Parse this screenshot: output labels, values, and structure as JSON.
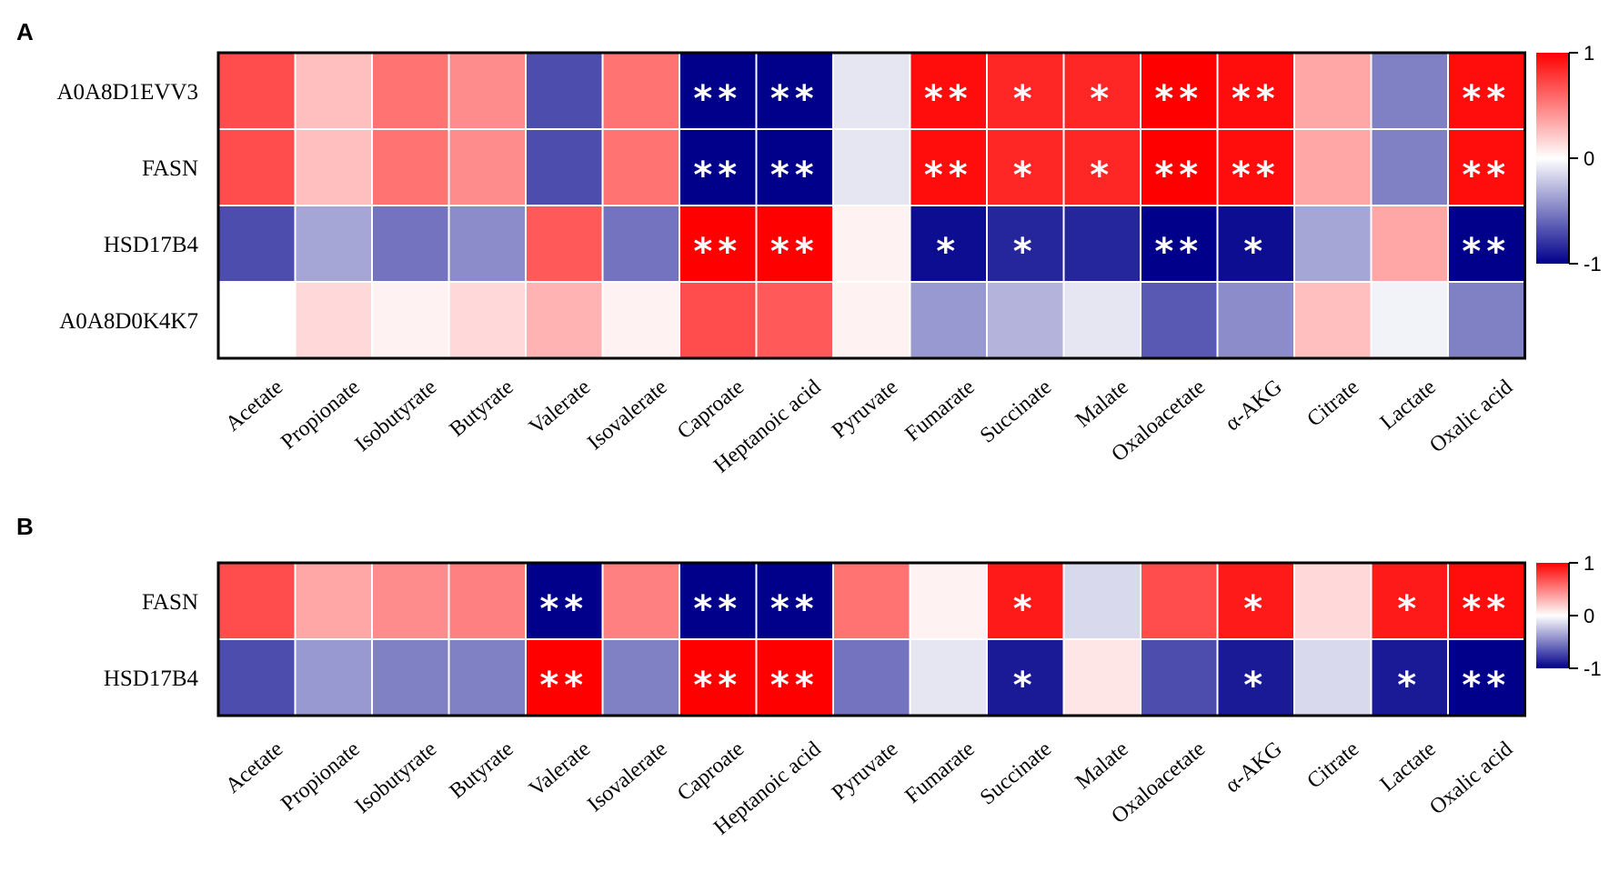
{
  "chart_data": [
    {
      "type": "heatmap",
      "panel_label": "A",
      "rows": [
        "A0A8D1EVV3",
        "FASN",
        "HSD17B4",
        "A0A8D0K4K7"
      ],
      "columns": [
        "Acetate",
        "Propionate",
        "Isobutyrate",
        "Butyrate",
        "Valerate",
        "Isovalerate",
        "Caproate",
        "Heptanoic acid",
        "Pyruvate",
        "Fumarate",
        "Succinate",
        "Malate",
        "Oxaloacetate",
        "α-AKG",
        "Citrate",
        "Lactate",
        "Oxalic acid"
      ],
      "values": [
        [
          0.7,
          0.25,
          0.55,
          0.45,
          -0.7,
          0.55,
          -1.0,
          -1.0,
          -0.1,
          0.95,
          0.85,
          0.85,
          1.0,
          0.95,
          0.35,
          -0.5,
          0.95
        ],
        [
          0.7,
          0.25,
          0.55,
          0.45,
          -0.7,
          0.55,
          -1.0,
          -1.0,
          -0.1,
          0.95,
          0.85,
          0.85,
          1.0,
          0.95,
          0.35,
          -0.5,
          0.95
        ],
        [
          -0.7,
          -0.35,
          -0.55,
          -0.45,
          0.65,
          -0.55,
          1.0,
          1.0,
          0.05,
          -0.95,
          -0.85,
          -0.85,
          -1.0,
          -0.95,
          -0.35,
          0.35,
          -1.0
        ],
        [
          0.0,
          0.15,
          0.05,
          0.15,
          0.3,
          0.05,
          0.7,
          0.65,
          0.05,
          -0.4,
          -0.3,
          -0.1,
          -0.65,
          -0.45,
          0.25,
          -0.05,
          -0.5
        ]
      ],
      "significance": [
        [
          "",
          "",
          "",
          "",
          "",
          "",
          "**",
          "**",
          "",
          "**",
          "*",
          "*",
          "**",
          "**",
          "",
          "",
          "**"
        ],
        [
          "",
          "",
          "",
          "",
          "",
          "",
          "**",
          "**",
          "",
          "**",
          "*",
          "*",
          "**",
          "**",
          "",
          "",
          "**"
        ],
        [
          "",
          "",
          "",
          "",
          "",
          "",
          "**",
          "**",
          "",
          "*",
          "*",
          "",
          "**",
          "*",
          "",
          "",
          "**"
        ],
        [
          "",
          "",
          "",
          "",
          "",
          "",
          "",
          "",
          "",
          "",
          "",
          "",
          "",
          "",
          "",
          "",
          ""
        ]
      ],
      "colorbar": {
        "min": -1,
        "max": 1,
        "ticks": [
          "1",
          "0",
          "-1"
        ],
        "colors": {
          "high": "#ff0000",
          "mid": "#ffffff",
          "low": "#00008b"
        }
      }
    },
    {
      "type": "heatmap",
      "panel_label": "B",
      "rows": [
        "FASN",
        "HSD17B4"
      ],
      "columns": [
        "Acetate",
        "Propionate",
        "Isobutyrate",
        "Butyrate",
        "Valerate",
        "Isovalerate",
        "Caproate",
        "Heptanoic acid",
        "Pyruvate",
        "Fumarate",
        "Succinate",
        "Malate",
        "Oxaloacetate",
        "α-AKG",
        "Citrate",
        "Lactate",
        "Oxalic acid"
      ],
      "values": [
        [
          0.7,
          0.35,
          0.45,
          0.5,
          -1.0,
          0.5,
          -1.0,
          -1.0,
          0.55,
          0.05,
          0.9,
          -0.15,
          0.7,
          0.9,
          0.15,
          0.9,
          0.95
        ],
        [
          -0.7,
          -0.4,
          -0.5,
          -0.5,
          1.0,
          -0.5,
          1.0,
          1.0,
          -0.55,
          -0.1,
          -0.9,
          0.1,
          -0.7,
          -0.9,
          -0.15,
          -0.9,
          -1.0
        ]
      ],
      "significance": [
        [
          "",
          "",
          "",
          "",
          "**",
          "",
          "**",
          "**",
          "",
          "",
          "*",
          "",
          "",
          "*",
          "",
          "*",
          "**"
        ],
        [
          "",
          "",
          "",
          "",
          "**",
          "",
          "**",
          "**",
          "",
          "",
          "*",
          "",
          "",
          "*",
          "",
          "*",
          "**"
        ]
      ],
      "colorbar": {
        "min": -1,
        "max": 1,
        "ticks": [
          "1",
          "0",
          "-1"
        ],
        "colors": {
          "high": "#ff0000",
          "mid": "#ffffff",
          "low": "#00008b"
        }
      }
    }
  ]
}
